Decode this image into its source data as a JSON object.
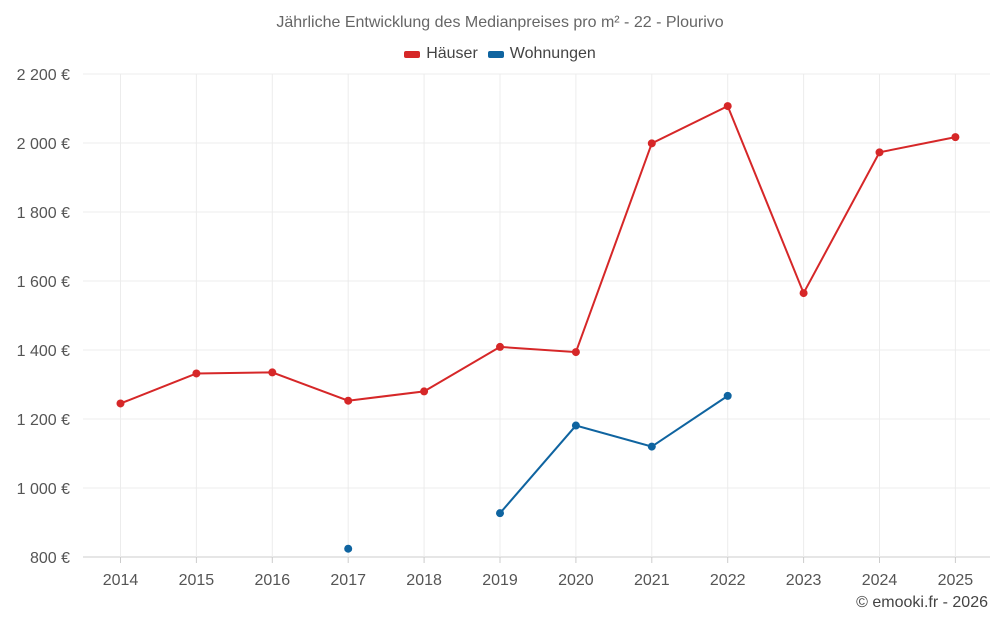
{
  "chart_data": {
    "type": "line",
    "title": "Jährliche Entwicklung des Medianpreises pro m² - 22 - Plourivo",
    "categories": [
      "2014",
      "2015",
      "2016",
      "2017",
      "2018",
      "2019",
      "2020",
      "2021",
      "2022",
      "2023",
      "2024",
      "2025"
    ],
    "y_ticks": [
      "800 €",
      "1 000 €",
      "1 200 €",
      "1 400 €",
      "1 600 €",
      "1 800 €",
      "2 000 €",
      "2 200 €"
    ],
    "y_tick_values": [
      800,
      1000,
      1200,
      1400,
      1600,
      1800,
      2000,
      2200
    ],
    "ylim": [
      800,
      2200
    ],
    "grid": true,
    "legend_position": "top-center",
    "series": [
      {
        "name": "Häuser",
        "color": "#d62728",
        "values": [
          1245,
          1332,
          1335,
          1253,
          1280,
          1409,
          1394,
          1999,
          2107,
          1565,
          1973,
          2017
        ]
      },
      {
        "name": "Wohnungen",
        "color": "#0f64a0",
        "values": [
          null,
          null,
          null,
          824,
          null,
          927,
          1181,
          1120,
          1267,
          null,
          null,
          null
        ]
      }
    ]
  },
  "credit": "© emooki.fr - 2026"
}
